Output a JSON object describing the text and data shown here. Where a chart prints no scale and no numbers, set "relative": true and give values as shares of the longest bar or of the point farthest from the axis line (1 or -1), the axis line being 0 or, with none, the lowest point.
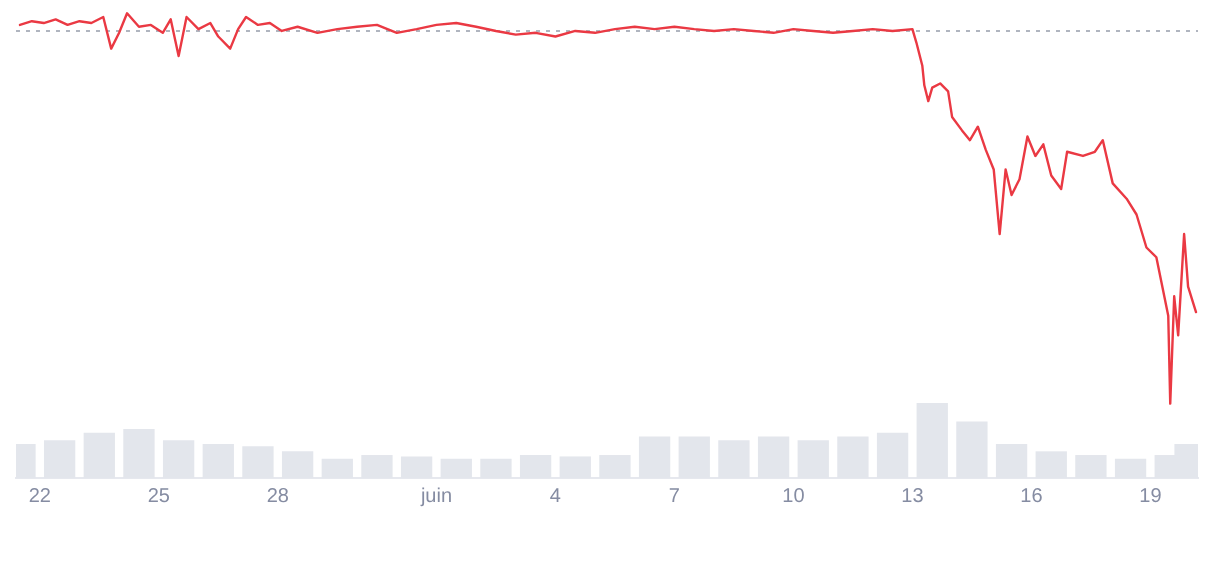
{
  "chart_data": {
    "type": "line",
    "relative": true,
    "legend": false,
    "marker": "none",
    "line_style": "solid",
    "xlim": [
      "--05-21T09:36",
      "--06-20T04:48"
    ],
    "xticks": [
      {
        "value": "--05-22",
        "label": "22"
      },
      {
        "value": "--05-25",
        "label": "25"
      },
      {
        "value": "--05-28",
        "label": "28"
      },
      {
        "value": "--06-01",
        "label": "juin"
      },
      {
        "value": "--06-04",
        "label": "4"
      },
      {
        "value": "--06-07",
        "label": "7"
      },
      {
        "value": "--06-10",
        "label": "10"
      },
      {
        "value": "--06-13",
        "label": "13"
      },
      {
        "value": "--06-16",
        "label": "16"
      },
      {
        "value": "--06-19",
        "label": "19"
      }
    ],
    "ref_lines": [
      {
        "axis": "y",
        "value": 0.962,
        "color": "#b0b5bf",
        "line_style": "dotted"
      }
    ],
    "series": [
      {
        "color": "#ea3943",
        "x": [
          "--05-21T12:00",
          "--05-21T19:12",
          "--05-22T02:24",
          "--05-22T09:36",
          "--05-22T16:48",
          "--05-23T00:00",
          "--05-23T07:12",
          "--05-23T14:24",
          "--05-23T19:12",
          "--05-24T00:00",
          "--05-24T04:48",
          "--05-24T12:00",
          "--05-24T19:12",
          "--05-25T02:24",
          "--05-25T07:12",
          "--05-25T12:00",
          "--05-25T16:48",
          "--05-26T00:00",
          "--05-26T07:12",
          "--05-26T12:00",
          "--05-26T19:12",
          "--05-27T00:00",
          "--05-27T04:48",
          "--05-27T12:00",
          "--05-27T19:12",
          "--05-28T02:24",
          "--05-28T12:00",
          "--05-29T00:00",
          "--05-29T12:00",
          "--05-30T00:00",
          "--05-30T12:00",
          "--05-31T00:00",
          "--05-31T12:00",
          "--06-01T00:00",
          "--06-01T12:00",
          "--06-02T00:00",
          "--06-02T12:00",
          "--06-03T00:00",
          "--06-03T12:00",
          "--06-04T00:00",
          "--06-04T12:00",
          "--06-05T00:00",
          "--06-05T12:00",
          "--06-06T00:00",
          "--06-06T12:00",
          "--06-07T00:00",
          "--06-07T12:00",
          "--06-08T00:00",
          "--06-08T12:00",
          "--06-09T00:00",
          "--06-09T12:00",
          "--06-10T00:00",
          "--06-10T12:00",
          "--06-11T00:00",
          "--06-11T12:00",
          "--06-12T00:00",
          "--06-12T12:00",
          "--06-13T00:00",
          "--06-13T02:24",
          "--06-13T06:00",
          "--06-13T07:12",
          "--06-13T09:36",
          "--06-13T12:00",
          "--06-13T16:48",
          "--06-13T21:36",
          "--06-14T00:00",
          "--06-14T06:00",
          "--06-14T10:48",
          "--06-14T15:36",
          "--06-14T20:24",
          "--06-15T01:12",
          "--06-15T04:48",
          "--06-15T08:24",
          "--06-15T12:00",
          "--06-15T16:48",
          "--06-15T21:36",
          "--06-16T02:24",
          "--06-16T07:12",
          "--06-16T12:00",
          "--06-16T18:00",
          "--06-16T21:36",
          "--06-17T07:12",
          "--06-17T14:24",
          "--06-17T19:12",
          "--06-18T01:12",
          "--06-18T09:36",
          "--06-18T15:36",
          "--06-18T21:36",
          "--06-19T03:36",
          "--06-19T10:48",
          "--06-19T12:00",
          "--06-19T14:24",
          "--06-19T16:48",
          "--06-19T20:24",
          "--06-19T22:48",
          "--06-20T03:36"
        ],
        "values": [
          0.975,
          0.983,
          0.979,
          0.987,
          0.975,
          0.983,
          0.979,
          0.992,
          0.924,
          0.958,
          1,
          0.971,
          0.975,
          0.958,
          0.987,
          0.908,
          0.992,
          0.966,
          0.979,
          0.95,
          0.924,
          0.966,
          0.992,
          0.975,
          0.979,
          0.962,
          0.971,
          0.958,
          0.966,
          0.971,
          0.975,
          0.958,
          0.966,
          0.975,
          0.979,
          0.971,
          0.962,
          0.954,
          0.958,
          0.95,
          0.962,
          0.958,
          0.966,
          0.971,
          0.966,
          0.971,
          0.966,
          0.962,
          0.966,
          0.962,
          0.958,
          0.966,
          0.962,
          0.958,
          0.962,
          0.966,
          0.962,
          0.966,
          0.937,
          0.887,
          0.845,
          0.811,
          0.84,
          0.849,
          0.832,
          0.777,
          0.748,
          0.727,
          0.756,
          0.706,
          0.664,
          0.525,
          0.664,
          0.609,
          0.643,
          0.735,
          0.693,
          0.718,
          0.651,
          0.622,
          0.702,
          0.693,
          0.702,
          0.727,
          0.634,
          0.601,
          0.567,
          0.496,
          0.475,
          0.349,
          0.16,
          0.391,
          0.307,
          0.525,
          0.412,
          0.357
        ]
      },
      {
        "type": "bar",
        "color": "#e3e6ec",
        "x": [
          "--05-21T12:00",
          "--05-22T12:00",
          "--05-23T12:00",
          "--05-24T12:00",
          "--05-25T12:00",
          "--05-26T12:00",
          "--05-27T12:00",
          "--05-28T12:00",
          "--05-29T12:00",
          "--05-30T12:00",
          "--05-31T12:00",
          "--06-01T12:00",
          "--06-02T12:00",
          "--06-03T12:00",
          "--06-04T12:00",
          "--06-05T12:00",
          "--06-06T12:00",
          "--06-07T12:00",
          "--06-08T12:00",
          "--06-09T12:00",
          "--06-10T12:00",
          "--06-11T12:00",
          "--06-12T12:00",
          "--06-13T12:00",
          "--06-14T12:00",
          "--06-15T12:00",
          "--06-16T12:00",
          "--06-17T12:00",
          "--06-18T12:00",
          "--06-19T12:00",
          "--06-20T00:00"
        ],
        "values": [
          0.072,
          0.08,
          0.096,
          0.104,
          0.08,
          0.072,
          0.067,
          0.056,
          0.04,
          0.048,
          0.045,
          0.04,
          0.04,
          0.048,
          0.045,
          0.048,
          0.088,
          0.088,
          0.08,
          0.088,
          0.08,
          0.088,
          0.096,
          0.16,
          0.12,
          0.072,
          0.056,
          0.048,
          0.04,
          0.048,
          0.072
        ]
      }
    ]
  }
}
